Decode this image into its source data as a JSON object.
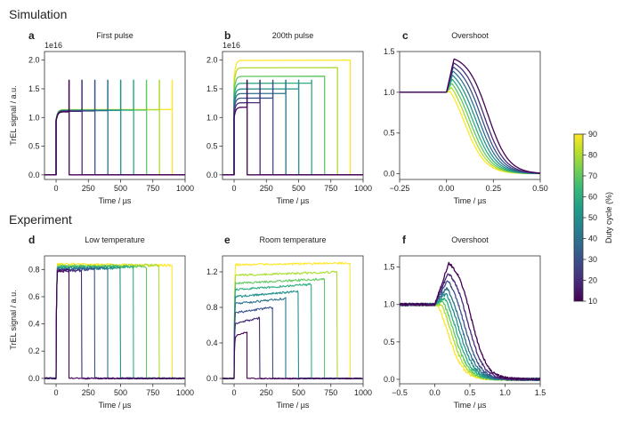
{
  "figure": {
    "sections": {
      "simulation": "Simulation",
      "experiment": "Experiment"
    },
    "colorbar": {
      "label": "Duty cycle (%)",
      "ticks": [
        10,
        20,
        30,
        40,
        50,
        60,
        70,
        80,
        90
      ],
      "range": [
        10,
        90
      ],
      "colormap": "viridis",
      "stops": [
        "#440154",
        "#482878",
        "#3e4989",
        "#31688e",
        "#26828e",
        "#1f9e89",
        "#35b779",
        "#6ece58",
        "#b5de2b",
        "#fde725"
      ]
    }
  },
  "chart_data": [
    {
      "id": "a",
      "panel": "a",
      "type": "line",
      "title": "First pulse",
      "xlabel": "Time / µs",
      "ylabel": "TrEL signal / a.u.",
      "offset_text": "1e16",
      "xlim": [
        -90,
        1000
      ],
      "ylim": [
        -0.08,
        2.15
      ],
      "xticks": [
        0,
        250,
        500,
        750,
        1000
      ],
      "yticks": [
        0.0,
        0.5,
        1.0,
        1.5,
        2.0
      ],
      "xtick_labels": [
        "0",
        "250",
        "500",
        "750",
        "1000"
      ],
      "ytick_labels": [
        "0.0",
        "0.5",
        "1.0",
        "1.5",
        "2.0"
      ],
      "duty_cycles": [
        10,
        20,
        30,
        40,
        50,
        60,
        70,
        80,
        90
      ],
      "pulse_end_us": [
        100,
        200,
        300,
        400,
        500,
        600,
        700,
        800,
        900
      ],
      "plateau": [
        1.1,
        1.11,
        1.115,
        1.12,
        1.125,
        1.13,
        1.13,
        1.135,
        1.14
      ],
      "spike": [
        1.65,
        1.65,
        1.65,
        1.65,
        1.65,
        1.65,
        1.65,
        1.65,
        1.65
      ],
      "baseline": 0.0
    },
    {
      "id": "b",
      "panel": "b",
      "type": "line",
      "title": "200th pulse",
      "xlabel": "Time / µs",
      "ylabel": "",
      "offset_text": "1e16",
      "xlim": [
        -90,
        1000
      ],
      "ylim": [
        -0.08,
        2.15
      ],
      "xticks": [
        0,
        250,
        500,
        750,
        1000
      ],
      "yticks": [
        0.0,
        0.5,
        1.0,
        1.5,
        2.0
      ],
      "xtick_labels": [
        "0",
        "250",
        "500",
        "750",
        "1000"
      ],
      "ytick_labels": [
        "0.0",
        "0.5",
        "1.0",
        "1.5",
        "2.0"
      ],
      "duty_cycles": [
        10,
        20,
        30,
        40,
        50,
        60,
        70,
        80,
        90
      ],
      "pulse_end_us": [
        100,
        200,
        300,
        400,
        500,
        600,
        700,
        800,
        900
      ],
      "plateau": [
        1.18,
        1.26,
        1.34,
        1.42,
        1.5,
        1.6,
        1.72,
        1.87,
        2.0
      ],
      "spike": [
        1.65,
        1.65,
        1.65,
        1.65,
        1.65,
        1.65,
        1.72,
        1.87,
        2.0
      ],
      "baseline": 0.0
    },
    {
      "id": "c",
      "panel": "c",
      "type": "line",
      "title": "Overshoot",
      "xlabel": "Time / µs",
      "ylabel": "",
      "xlim": [
        -0.25,
        0.5
      ],
      "ylim": [
        -0.07,
        1.5
      ],
      "xticks": [
        -0.25,
        0.0,
        0.25,
        0.5
      ],
      "yticks": [
        0.0,
        0.5,
        1.0,
        1.5
      ],
      "xtick_labels": [
        "−0.25",
        "0.00",
        "0.25",
        "0.50"
      ],
      "ytick_labels": [
        "0.0",
        "0.5",
        "1.0",
        "1.5"
      ],
      "duty_cycles": [
        10,
        20,
        30,
        40,
        50,
        60,
        70,
        80,
        90
      ],
      "peak": [
        1.41,
        1.36,
        1.31,
        1.26,
        1.21,
        1.16,
        1.11,
        1.06,
        1.01
      ],
      "peak_time": [
        0.04,
        0.038,
        0.036,
        0.034,
        0.032,
        0.03,
        0.028,
        0.026,
        0.02
      ],
      "decay_mid": [
        0.22,
        0.2,
        0.185,
        0.17,
        0.155,
        0.14,
        0.125,
        0.11,
        0.095
      ],
      "noisy": false
    },
    {
      "id": "d",
      "panel": "d",
      "type": "line",
      "title": "Low temperature",
      "xlabel": "Time / µs",
      "ylabel": "TrEL signal / a.u.",
      "xlim": [
        -90,
        1000
      ],
      "ylim": [
        -0.04,
        0.9
      ],
      "xticks": [
        0,
        250,
        500,
        750,
        1000
      ],
      "yticks": [
        0.0,
        0.2,
        0.4,
        0.6,
        0.8
      ],
      "xtick_labels": [
        "0",
        "250",
        "500",
        "750",
        "1000"
      ],
      "ytick_labels": [
        "0.0",
        "0.2",
        "0.4",
        "0.6",
        "0.8"
      ],
      "duty_cycles": [
        10,
        20,
        30,
        40,
        50,
        60,
        70,
        80,
        90
      ],
      "pulse_end_us": [
        100,
        200,
        300,
        400,
        500,
        600,
        700,
        800,
        900
      ],
      "plateau_start": [
        0.79,
        0.79,
        0.8,
        0.8,
        0.81,
        0.82,
        0.82,
        0.83,
        0.84
      ],
      "plateau_end": [
        0.79,
        0.79,
        0.8,
        0.81,
        0.81,
        0.82,
        0.82,
        0.83,
        0.83
      ],
      "baseline": 0.0,
      "noise": 0.01
    },
    {
      "id": "e",
      "panel": "e",
      "type": "line",
      "title": "Room temperature",
      "xlabel": "Time / µs",
      "ylabel": "",
      "xlim": [
        -90,
        1000
      ],
      "ylim": [
        -0.06,
        1.38
      ],
      "xticks": [
        0,
        250,
        500,
        750,
        1000
      ],
      "yticks": [
        0.0,
        0.4,
        0.8,
        1.2
      ],
      "xtick_labels": [
        "0",
        "250",
        "500",
        "750",
        "1000"
      ],
      "ytick_labels": [
        "0.0",
        "0.4",
        "0.8",
        "1.2"
      ],
      "duty_cycles": [
        10,
        20,
        30,
        40,
        50,
        60,
        70,
        80,
        90
      ],
      "pulse_end_us": [
        100,
        200,
        300,
        400,
        500,
        600,
        700,
        800,
        900
      ],
      "plateau_start": [
        0.47,
        0.62,
        0.74,
        0.84,
        0.92,
        1.0,
        1.07,
        1.16,
        1.28
      ],
      "plateau_end": [
        0.52,
        0.68,
        0.8,
        0.9,
        0.98,
        1.06,
        1.12,
        1.2,
        1.3
      ],
      "baseline": 0.0,
      "noise": 0.012
    },
    {
      "id": "f",
      "panel": "f",
      "type": "line",
      "title": "Overshoot",
      "xlabel": "Time / µs",
      "ylabel": "",
      "xlim": [
        -0.5,
        1.5
      ],
      "ylim": [
        -0.06,
        1.65
      ],
      "xticks": [
        -0.5,
        0.0,
        0.5,
        1.0,
        1.5
      ],
      "yticks": [
        0.0,
        0.5,
        1.0,
        1.5
      ],
      "xtick_labels": [
        "−0.5",
        "0.0",
        "0.5",
        "1.0",
        "1.5"
      ],
      "ytick_labels": [
        "0.0",
        "0.5",
        "1.0",
        "1.5"
      ],
      "duty_cycles": [
        10,
        20,
        30,
        40,
        50,
        60,
        70,
        80,
        90
      ],
      "peak": [
        1.55,
        1.42,
        1.32,
        1.22,
        1.15,
        1.09,
        1.04,
        1.0,
        0.98
      ],
      "peak_time": [
        0.2,
        0.19,
        0.18,
        0.17,
        0.16,
        0.14,
        0.12,
        0.1,
        0.05
      ],
      "decay_mid": [
        0.52,
        0.47,
        0.42,
        0.38,
        0.34,
        0.3,
        0.26,
        0.22,
        0.18
      ],
      "noisy": true
    }
  ]
}
